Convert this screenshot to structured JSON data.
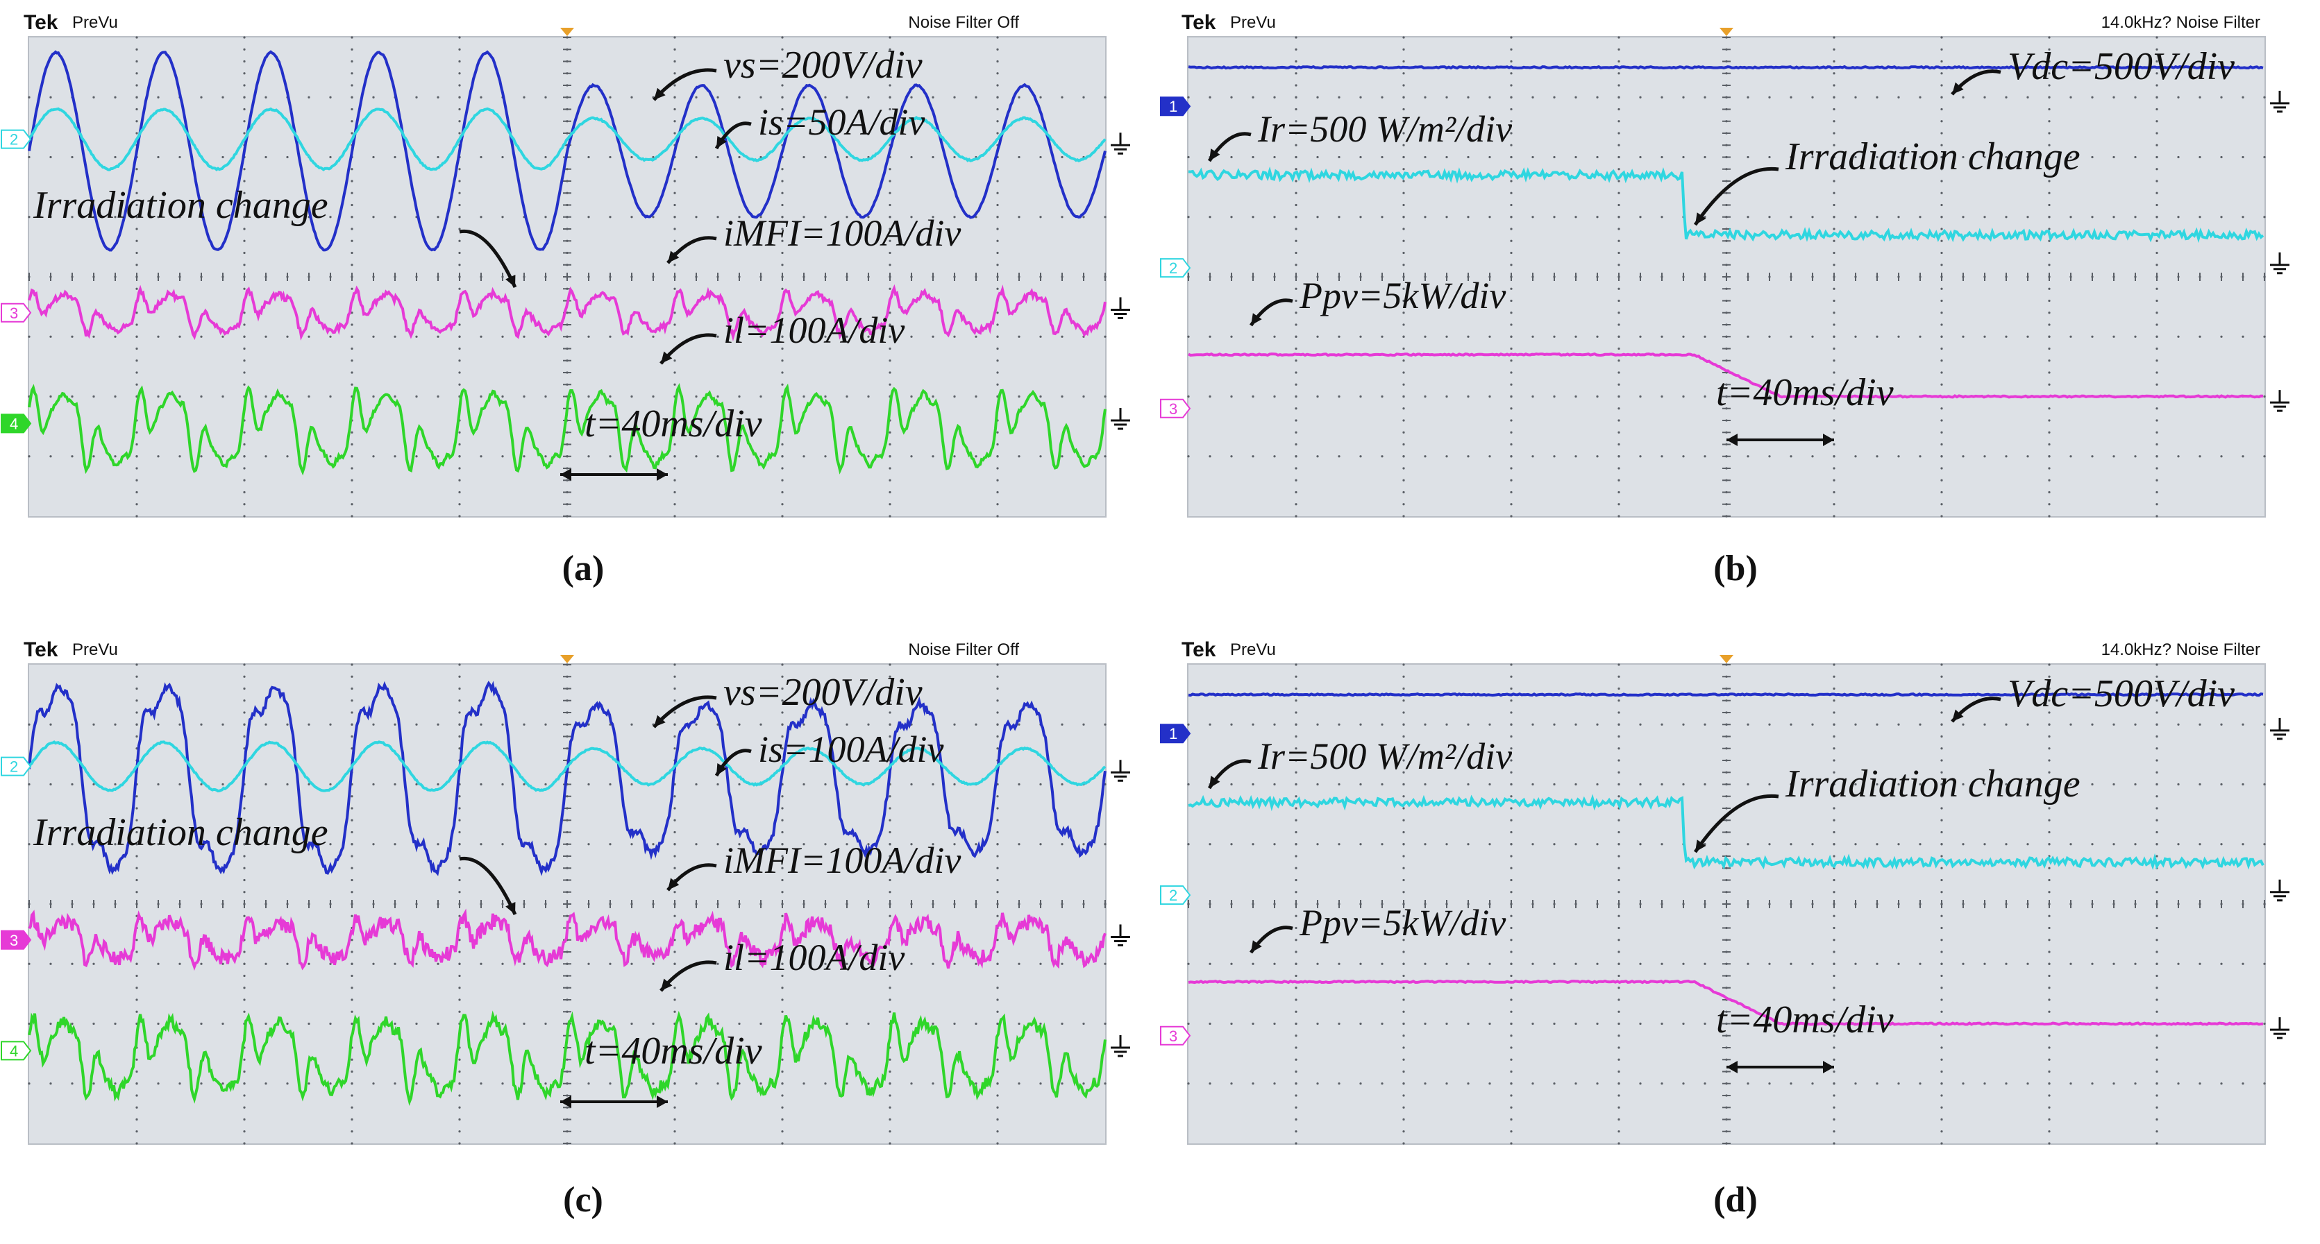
{
  "header": {
    "brand": "Tek",
    "mode": "PreVu",
    "filter_off": "Noise Filter Off",
    "filter_on": "14.0kHz? Noise Filter"
  },
  "colors": {
    "vs": "#2330c8",
    "is": "#2fd6e0",
    "imfi": "#e63ad6",
    "il": "#2fd62a",
    "vdc": "#2330c8",
    "ir": "#2fd6e0",
    "ppv": "#e63ad6",
    "grid": "#5a5f66",
    "panel_bg": "#dde1e6"
  },
  "panels": [
    {
      "id": "a",
      "caption": "(a)",
      "filter_text": "Noise Filter Off",
      "channel_markers": [
        "2",
        "3",
        "4"
      ],
      "labels": {
        "vs": "vs=200V/div",
        "is": "is=50A/div",
        "event": "Irradiation change",
        "imfi": "iMFI=100A/div",
        "il": "il=100A/div",
        "time": "t=40ms/div"
      }
    },
    {
      "id": "b",
      "caption": "(b)",
      "filter_text": "14.0kHz? Noise Filter",
      "channel_markers": [
        "1",
        "2",
        "3"
      ],
      "labels": {
        "vdc": "Vdc=500V/div",
        "ir": "Ir=500 W/m²/div",
        "event": "Irradiation change",
        "ppv": "Ppv=5kW/div",
        "time": "t=40ms/div"
      }
    },
    {
      "id": "c",
      "caption": "(c)",
      "filter_text": "Noise Filter Off",
      "channel_markers": [
        "2",
        "3",
        "4"
      ],
      "labels": {
        "vs": "vs=200V/div",
        "is": "is=100A/div",
        "event": "Irradiation change",
        "imfi": "iMFI=100A/div",
        "il": "il=100A/div",
        "time": "t=40ms/div"
      }
    },
    {
      "id": "d",
      "caption": "(d)",
      "filter_text": "14.0kHz? Noise Filter",
      "channel_markers": [
        "1",
        "2",
        "3"
      ],
      "labels": {
        "vdc": "Vdc=500V/div",
        "ir": "Ir=500 W/m²/div",
        "event": "Irradiation change",
        "ppv": "Ppv=5kW/div",
        "time": "t=40ms/div"
      }
    }
  ],
  "chart_data": [
    {
      "type": "line",
      "title": "(a)",
      "x_divisions": 10,
      "y_divisions": 8,
      "time_per_div": "40ms",
      "event": "Irradiation change",
      "series": [
        {
          "name": "vs",
          "scale": "200V/div",
          "shape": "sine",
          "cycles": 10,
          "amplitude_div": 1.65,
          "amplitude_change_at_div": 5.0,
          "amplitude_after_div": 1.1
        },
        {
          "name": "is",
          "scale": "50A/div",
          "shape": "sine",
          "cycles": 10,
          "amplitude_div": 0.5,
          "amplitude_after_div": 0.35
        },
        {
          "name": "iMFI",
          "scale": "100A/div",
          "shape": "harmonic",
          "cycles": 10
        },
        {
          "name": "il",
          "scale": "100A/div",
          "shape": "harmonic",
          "cycles": 10
        }
      ]
    },
    {
      "type": "line",
      "title": "(b)",
      "x_divisions": 10,
      "y_divisions": 8,
      "time_per_div": "40ms",
      "event": "Irradiation change",
      "series": [
        {
          "name": "Vdc",
          "scale": "500V/div",
          "level_div": 0.5
        },
        {
          "name": "Ir",
          "scale": "500 W/m²/div",
          "level_before_div": 2.3,
          "step_at_div": 4.6,
          "level_after_div": 3.3
        },
        {
          "name": "Ppv",
          "scale": "5kW/div",
          "level_before_div": 5.3,
          "ramp_start_div": 4.7,
          "ramp_end_div": 5.5,
          "level_after_div": 6.0
        }
      ]
    },
    {
      "type": "line",
      "title": "(c)",
      "x_divisions": 10,
      "y_divisions": 8,
      "time_per_div": "40ms",
      "event": "Irradiation change",
      "series": [
        {
          "name": "vs",
          "scale": "200V/div",
          "shape": "distorted-sine",
          "cycles": 10,
          "amplitude_div": 1.6,
          "amplitude_after_div": 1.3
        },
        {
          "name": "is",
          "scale": "100A/div",
          "shape": "sine",
          "cycles": 10,
          "amplitude_div": 0.4,
          "amplitude_after_div": 0.3
        },
        {
          "name": "iMFI",
          "scale": "100A/div",
          "shape": "harmonic",
          "cycles": 10
        },
        {
          "name": "il",
          "scale": "100A/div",
          "shape": "harmonic",
          "cycles": 10
        }
      ]
    },
    {
      "type": "line",
      "title": "(d)",
      "x_divisions": 10,
      "y_divisions": 8,
      "time_per_div": "40ms",
      "event": "Irradiation change",
      "series": [
        {
          "name": "Vdc",
          "scale": "500V/div",
          "level_div": 0.5
        },
        {
          "name": "Ir",
          "scale": "500 W/m²/div",
          "level_before_div": 2.3,
          "step_at_div": 4.6,
          "level_after_div": 3.3
        },
        {
          "name": "Ppv",
          "scale": "5kW/div",
          "level_before_div": 5.3,
          "ramp_start_div": 4.7,
          "ramp_end_div": 5.5,
          "level_after_div": 6.0
        }
      ]
    }
  ]
}
